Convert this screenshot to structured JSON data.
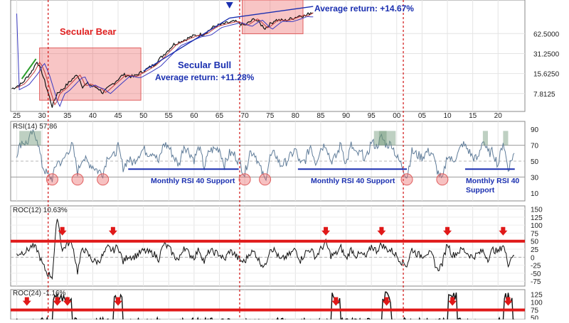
{
  "chart_data": {
    "type": "line",
    "x_ticks": [
      "25",
      "30",
      "35",
      "40",
      "45",
      "50",
      "55",
      "60",
      "65",
      "70",
      "75",
      "80",
      "85",
      "90",
      "95",
      "00",
      "05",
      "10",
      "15",
      "20"
    ],
    "panels": {
      "price": {
        "y_scale": "log",
        "y_ticks": [
          "62.5000",
          "31.2500",
          "15.6250",
          "7.8125"
        ],
        "annotations": [
          {
            "text": "Secular Bear",
            "color": "#e02020"
          },
          {
            "text": "Secular Bull",
            "color": "#1a2fb0"
          },
          {
            "text": "Average return:  +11.28%",
            "color": "#1a2fb0"
          },
          {
            "text": "Average return:  +14.67%",
            "color": "#1a2fb0"
          }
        ],
        "series": [
          {
            "values": [
              [
                1924,
                9.2
              ],
              [
                1926,
                11
              ],
              [
                1928,
                17
              ],
              [
                1929,
                24
              ],
              [
                1930,
                16
              ],
              [
                1931,
                9
              ],
              [
                1932,
                5
              ],
              [
                1933,
                8
              ],
              [
                1934,
                9
              ],
              [
                1936,
                13
              ],
              [
                1937,
                15
              ],
              [
                1938,
                10
              ],
              [
                1939,
                11
              ],
              [
                1940,
                10
              ],
              [
                1941,
                9.5
              ],
              [
                1942,
                8
              ],
              [
                1944,
                11
              ],
              [
                1946,
                15
              ],
              [
                1948,
                14
              ],
              [
                1950,
                17
              ],
              [
                1952,
                21
              ],
              [
                1954,
                30
              ],
              [
                1956,
                43
              ],
              [
                1958,
                50
              ],
              [
                1960,
                58
              ],
              [
                1962,
                62
              ],
              [
                1964,
                80
              ],
              [
                1966,
                88
              ],
              [
                1968,
                95
              ],
              [
                1970,
                83
              ],
              [
                1972,
                105
              ],
              [
                1974,
                75
              ],
              [
                1976,
                100
              ],
              [
                1978,
                98
              ],
              [
                1980,
                110
              ],
              [
                1981,
                118
              ],
              [
                1982,
                115
              ],
              [
                1983,
                130
              ]
            ]
          }
        ]
      },
      "rsi": {
        "label": "RSI(14) 57.86",
        "y_ticks": [
          "90",
          "70",
          "50",
          "30",
          "10"
        ],
        "levels": [
          70,
          50,
          30
        ],
        "annotations": [
          {
            "text": "Monthly RSI 40 Support"
          },
          {
            "text": "Monthly RSI 40 Support"
          },
          {
            "text": "Monthly RSI 40 Support"
          }
        ],
        "support_level": 40,
        "oversold_marks": [
          1932,
          1937,
          1942,
          1970,
          1974,
          2002,
          2009
        ],
        "values": [
          [
            1925,
            60
          ],
          [
            1926,
            75
          ],
          [
            1927,
            72
          ],
          [
            1928,
            85
          ],
          [
            1929,
            80
          ],
          [
            1930,
            45
          ],
          [
            1931,
            33
          ],
          [
            1932,
            28
          ],
          [
            1933,
            50
          ],
          [
            1934,
            48
          ],
          [
            1935,
            62
          ],
          [
            1936,
            70
          ],
          [
            1937,
            36
          ],
          [
            1938,
            55
          ],
          [
            1939,
            48
          ],
          [
            1940,
            44
          ],
          [
            1941,
            38
          ],
          [
            1942,
            35
          ],
          [
            1943,
            58
          ],
          [
            1944,
            55
          ],
          [
            1945,
            68
          ],
          [
            1946,
            42
          ],
          [
            1947,
            52
          ],
          [
            1948,
            48
          ],
          [
            1949,
            58
          ],
          [
            1950,
            65
          ],
          [
            1951,
            60
          ],
          [
            1952,
            62
          ],
          [
            1953,
            48
          ],
          [
            1954,
            72
          ],
          [
            1955,
            68
          ],
          [
            1956,
            55
          ],
          [
            1957,
            45
          ],
          [
            1958,
            70
          ],
          [
            1959,
            62
          ],
          [
            1960,
            52
          ],
          [
            1961,
            68
          ],
          [
            1962,
            42
          ],
          [
            1963,
            63
          ],
          [
            1964,
            65
          ],
          [
            1965,
            66
          ],
          [
            1966,
            45
          ],
          [
            1967,
            60
          ],
          [
            1968,
            58
          ],
          [
            1969,
            48
          ],
          [
            1970,
            33
          ],
          [
            1971,
            62
          ],
          [
            1972,
            60
          ],
          [
            1973,
            42
          ],
          [
            1974,
            26
          ],
          [
            1975,
            55
          ],
          [
            1976,
            60
          ],
          [
            1977,
            45
          ],
          [
            1978,
            48
          ],
          [
            1979,
            56
          ],
          [
            1980,
            65
          ],
          [
            1981,
            45
          ],
          [
            1982,
            52
          ],
          [
            1983,
            70
          ],
          [
            1984,
            48
          ],
          [
            1985,
            66
          ],
          [
            1986,
            72
          ],
          [
            1987,
            50
          ],
          [
            1988,
            55
          ],
          [
            1989,
            72
          ],
          [
            1990,
            46
          ],
          [
            1991,
            70
          ],
          [
            1992,
            58
          ],
          [
            1993,
            60
          ],
          [
            1994,
            52
          ],
          [
            1995,
            75
          ],
          [
            1996,
            68
          ],
          [
            1997,
            80
          ],
          [
            1998,
            70
          ],
          [
            1999,
            72
          ],
          [
            2000,
            55
          ],
          [
            2001,
            45
          ],
          [
            2002,
            30
          ],
          [
            2003,
            62
          ],
          [
            2004,
            58
          ],
          [
            2005,
            55
          ],
          [
            2006,
            62
          ],
          [
            2007,
            60
          ],
          [
            2008,
            38
          ],
          [
            2009,
            25
          ],
          [
            2010,
            58
          ],
          [
            2011,
            50
          ],
          [
            2012,
            58
          ],
          [
            2013,
            72
          ],
          [
            2014,
            65
          ],
          [
            2015,
            55
          ],
          [
            2016,
            52
          ],
          [
            2017,
            78
          ],
          [
            2018,
            60
          ],
          [
            2019,
            62
          ],
          [
            2020,
            45
          ],
          [
            2021,
            75
          ],
          [
            2022,
            40
          ],
          [
            2023,
            57.86
          ]
        ]
      },
      "roc12": {
        "label": "ROC(12) 10.63%",
        "y_ticks": [
          "150",
          "125",
          "100",
          "75",
          "50",
          "25",
          "0",
          "-25",
          "-50",
          "-75"
        ],
        "threshold": 50,
        "peak_marks": [
          1934,
          1944,
          1986,
          1997,
          2010,
          2021
        ],
        "values": [
          [
            1925,
            10
          ],
          [
            1926,
            15
          ],
          [
            1927,
            20
          ],
          [
            1928,
            35
          ],
          [
            1929,
            25
          ],
          [
            1930,
            -20
          ],
          [
            1931,
            -50
          ],
          [
            1932,
            -60
          ],
          [
            1933,
            130
          ],
          [
            1934,
            20
          ],
          [
            1935,
            45
          ],
          [
            1936,
            40
          ],
          [
            1937,
            -45
          ],
          [
            1938,
            30
          ],
          [
            1939,
            10
          ],
          [
            1940,
            -10
          ],
          [
            1941,
            -15
          ],
          [
            1942,
            5
          ],
          [
            1943,
            30
          ],
          [
            1944,
            20
          ],
          [
            1945,
            35
          ],
          [
            1946,
            -15
          ],
          [
            1947,
            5
          ],
          [
            1948,
            0
          ],
          [
            1949,
            10
          ],
          [
            1950,
            20
          ],
          [
            1951,
            15
          ],
          [
            1952,
            12
          ],
          [
            1953,
            -5
          ],
          [
            1954,
            40
          ],
          [
            1955,
            30
          ],
          [
            1956,
            5
          ],
          [
            1957,
            -10
          ],
          [
            1958,
            35
          ],
          [
            1959,
            10
          ],
          [
            1960,
            0
          ],
          [
            1961,
            25
          ],
          [
            1962,
            -15
          ],
          [
            1963,
            20
          ],
          [
            1964,
            15
          ],
          [
            1965,
            10
          ],
          [
            1966,
            -10
          ],
          [
            1967,
            20
          ],
          [
            1968,
            10
          ],
          [
            1969,
            -10
          ],
          [
            1970,
            -15
          ],
          [
            1971,
            15
          ],
          [
            1972,
            15
          ],
          [
            1973,
            -15
          ],
          [
            1974,
            -30
          ],
          [
            1975,
            30
          ],
          [
            1976,
            20
          ],
          [
            1977,
            -10
          ],
          [
            1978,
            0
          ],
          [
            1979,
            10
          ],
          [
            1980,
            25
          ],
          [
            1981,
            -10
          ],
          [
            1982,
            15
          ],
          [
            1983,
            25
          ],
          [
            1984,
            0
          ],
          [
            1985,
            25
          ],
          [
            1986,
            45
          ],
          [
            1987,
            5
          ],
          [
            1988,
            10
          ],
          [
            1989,
            30
          ],
          [
            1990,
            -5
          ],
          [
            1991,
            25
          ],
          [
            1992,
            5
          ],
          [
            1993,
            10
          ],
          [
            1994,
            0
          ],
          [
            1995,
            35
          ],
          [
            1996,
            20
          ],
          [
            1997,
            40
          ],
          [
            1998,
            25
          ],
          [
            1999,
            20
          ],
          [
            2000,
            5
          ],
          [
            2001,
            -15
          ],
          [
            2002,
            -25
          ],
          [
            2003,
            25
          ],
          [
            2004,
            10
          ],
          [
            2005,
            5
          ],
          [
            2006,
            15
          ],
          [
            2007,
            5
          ],
          [
            2008,
            -40
          ],
          [
            2009,
            -20
          ],
          [
            2010,
            45
          ],
          [
            2011,
            5
          ],
          [
            2012,
            15
          ],
          [
            2013,
            25
          ],
          [
            2014,
            12
          ],
          [
            2015,
            0
          ],
          [
            2016,
            10
          ],
          [
            2017,
            20
          ],
          [
            2018,
            -5
          ],
          [
            2019,
            25
          ],
          [
            2020,
            15
          ],
          [
            2021,
            40
          ],
          [
            2022,
            -20
          ],
          [
            2023,
            10.63
          ]
        ]
      },
      "roc24": {
        "label": "ROC(24) -1.16%",
        "y_ticks": [
          "125",
          "100",
          "75",
          "50"
        ],
        "threshold": 75,
        "peak_marks": [
          1927,
          1933,
          1935,
          1945,
          1988,
          1998,
          2011,
          2022
        ]
      }
    }
  }
}
